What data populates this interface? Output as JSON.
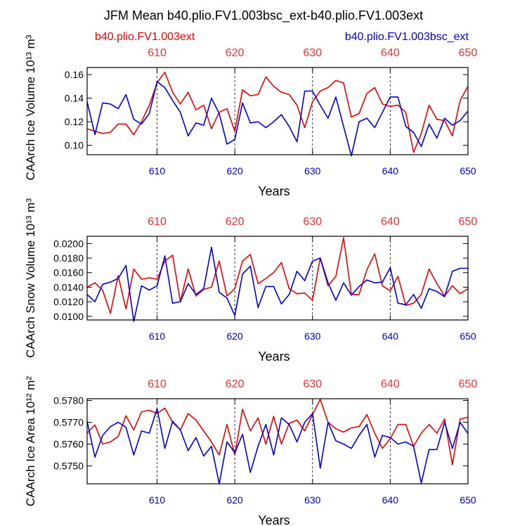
{
  "page": {
    "title": "JFM Mean b40.plio.FV1.003bsc_ext-b40.plio.FV1.003ext",
    "legend_red": "b40.plio.FV1.003ext",
    "legend_blue": "b40.plio.FV1.003bsc_ext"
  },
  "colors": {
    "red": "#ee0000",
    "blue": "#0000dd",
    "axis": "#000000",
    "tick_red": "#ee3333",
    "tick_blue": "#0000dd"
  },
  "chart_data": [
    {
      "type": "line",
      "ylabel": "CAArch Ice Volume 10¹³ m³",
      "xlabel": "Years",
      "xlim": [
        601,
        650
      ],
      "ylim": [
        0.092,
        0.166
      ],
      "yticks": [
        "0.10",
        "0.12",
        "0.14",
        "0.16"
      ],
      "ytick_values": [
        0.1,
        0.12,
        0.14,
        0.16
      ],
      "xticks": [
        610,
        620,
        630,
        640,
        650
      ],
      "x": [
        601,
        602,
        603,
        604,
        605,
        606,
        607,
        608,
        609,
        610,
        611,
        612,
        613,
        614,
        615,
        616,
        617,
        618,
        619,
        620,
        621,
        622,
        623,
        624,
        625,
        626,
        627,
        628,
        629,
        630,
        631,
        632,
        633,
        634,
        635,
        636,
        637,
        638,
        639,
        640,
        641,
        642,
        643,
        644,
        645,
        646,
        647,
        648,
        649,
        650
      ],
      "series": [
        {
          "name": "b40.plio.FV1.003ext",
          "color": "red",
          "values": [
            0.114,
            0.112,
            0.11,
            0.111,
            0.118,
            0.118,
            0.109,
            0.12,
            0.134,
            0.153,
            0.162,
            0.145,
            0.135,
            0.145,
            0.13,
            0.134,
            0.114,
            0.128,
            0.131,
            0.112,
            0.147,
            0.142,
            0.143,
            0.158,
            0.15,
            0.145,
            0.143,
            0.134,
            0.115,
            0.137,
            0.146,
            0.149,
            0.155,
            0.153,
            0.124,
            0.127,
            0.144,
            0.149,
            0.135,
            0.133,
            0.134,
            0.128,
            0.094,
            0.11,
            0.134,
            0.122,
            0.121,
            0.108,
            0.138,
            0.15
          ]
        },
        {
          "name": "b40.plio.FV1.003bsc_ext",
          "color": "blue",
          "values": [
            0.137,
            0.109,
            0.136,
            0.135,
            0.131,
            0.143,
            0.122,
            0.118,
            0.127,
            0.154,
            0.149,
            0.138,
            0.128,
            0.108,
            0.119,
            0.117,
            0.14,
            0.127,
            0.101,
            0.105,
            0.136,
            0.119,
            0.12,
            0.115,
            0.12,
            0.126,
            0.116,
            0.103,
            0.146,
            0.146,
            0.134,
            0.123,
            0.141,
            0.116,
            0.091,
            0.12,
            0.123,
            0.115,
            0.128,
            0.141,
            0.141,
            0.116,
            0.111,
            0.099,
            0.118,
            0.106,
            0.123,
            0.117,
            0.121,
            0.129
          ]
        }
      ]
    },
    {
      "type": "line",
      "ylabel": "CAArch Snow Volume 10¹³ m³",
      "xlabel": "Years",
      "xlim": [
        601,
        650
      ],
      "ylim": [
        0.0095,
        0.021
      ],
      "yticks": [
        "0.0100",
        "0.0120",
        "0.0140",
        "0.0160",
        "0.0180",
        "0.0200"
      ],
      "ytick_values": [
        0.01,
        0.012,
        0.014,
        0.016,
        0.018,
        0.02
      ],
      "xticks": [
        610,
        620,
        630,
        640,
        650
      ],
      "x": [
        601,
        602,
        603,
        604,
        605,
        606,
        607,
        608,
        609,
        610,
        611,
        612,
        613,
        614,
        615,
        616,
        617,
        618,
        619,
        620,
        621,
        622,
        623,
        624,
        625,
        626,
        627,
        628,
        629,
        630,
        631,
        632,
        633,
        634,
        635,
        636,
        637,
        638,
        639,
        640,
        641,
        642,
        643,
        644,
        645,
        646,
        647,
        648,
        649,
        650
      ],
      "series": [
        {
          "name": "b40.plio.FV1.003ext",
          "color": "red",
          "values": [
            0.014,
            0.0146,
            0.0136,
            0.0104,
            0.0156,
            0.011,
            0.0165,
            0.0151,
            0.0153,
            0.0151,
            0.0176,
            0.0184,
            0.012,
            0.0165,
            0.0128,
            0.0137,
            0.014,
            0.0176,
            0.0128,
            0.0138,
            0.0176,
            0.0185,
            0.0145,
            0.0152,
            0.016,
            0.0174,
            0.0138,
            0.0131,
            0.0132,
            0.0122,
            0.018,
            0.0142,
            0.0155,
            0.0208,
            0.013,
            0.013,
            0.0164,
            0.0186,
            0.0142,
            0.0135,
            0.0155,
            0.0115,
            0.0118,
            0.013,
            0.0165,
            0.0145,
            0.0128,
            0.0142,
            0.0131,
            0.0138
          ]
        },
        {
          "name": "b40.plio.FV1.003bsc_ext",
          "color": "blue",
          "values": [
            0.013,
            0.012,
            0.0144,
            0.0147,
            0.0152,
            0.017,
            0.0093,
            0.0142,
            0.0136,
            0.0142,
            0.0183,
            0.0118,
            0.012,
            0.0145,
            0.013,
            0.0138,
            0.0195,
            0.0133,
            0.0125,
            0.0101,
            0.0158,
            0.0169,
            0.0112,
            0.0141,
            0.0141,
            0.0117,
            0.013,
            0.0162,
            0.0149,
            0.0176,
            0.018,
            0.0146,
            0.0122,
            0.0146,
            0.0129,
            0.0141,
            0.015,
            0.0146,
            0.0147,
            0.0167,
            0.0118,
            0.0116,
            0.013,
            0.0111,
            0.0138,
            0.0134,
            0.0127,
            0.0162,
            0.0166,
            0.0166
          ]
        }
      ]
    },
    {
      "type": "line",
      "ylabel": "CAArch Ice Area 10¹² m²",
      "xlabel": "Years",
      "xlim": [
        601,
        650
      ],
      "ylim": [
        0.57418,
        0.57808
      ],
      "yticks": [
        "0.5750",
        "0.5760",
        "0.5770",
        "0.5780"
      ],
      "ytick_values": [
        0.575,
        0.576,
        0.577,
        0.578
      ],
      "xticks": [
        610,
        620,
        630,
        640,
        650
      ],
      "x": [
        601,
        602,
        603,
        604,
        605,
        606,
        607,
        608,
        609,
        610,
        611,
        612,
        613,
        614,
        615,
        616,
        617,
        618,
        619,
        620,
        621,
        622,
        623,
        624,
        625,
        626,
        627,
        628,
        629,
        630,
        631,
        632,
        633,
        634,
        635,
        636,
        637,
        638,
        639,
        640,
        641,
        642,
        643,
        644,
        645,
        646,
        647,
        648,
        649,
        650
      ],
      "series": [
        {
          "name": "b40.plio.FV1.003ext",
          "color": "red",
          "values": [
            0.5765,
            0.57688,
            0.576,
            0.5761,
            0.57635,
            0.5773,
            0.57665,
            0.57747,
            0.57755,
            0.5774,
            0.57765,
            0.577,
            0.57665,
            0.5774,
            0.5771,
            0.5766,
            0.5761,
            0.5755,
            0.5769,
            0.5755,
            0.5776,
            0.5766,
            0.5772,
            0.576,
            0.57727,
            0.576,
            0.57695,
            0.5771,
            0.5766,
            0.57735,
            0.57805,
            0.577,
            0.5767,
            0.57655,
            0.57675,
            0.5768,
            0.57735,
            0.5765,
            0.5758,
            0.57625,
            0.5769,
            0.5769,
            0.5759,
            0.5765,
            0.5769,
            0.5765,
            0.57715,
            0.57505,
            0.57715,
            0.57723
          ]
        },
        {
          "name": "b40.plio.FV1.003bsc_ext",
          "color": "blue",
          "values": [
            0.57705,
            0.5754,
            0.5764,
            0.5768,
            0.577,
            0.57677,
            0.5755,
            0.5766,
            0.5765,
            0.57763,
            0.5758,
            0.57705,
            0.57665,
            0.5757,
            0.5763,
            0.57545,
            0.5759,
            0.57418,
            0.5761,
            0.5756,
            0.57645,
            0.5747,
            0.5759,
            0.5769,
            0.5755,
            0.5772,
            0.5769,
            0.5761,
            0.577,
            0.5774,
            0.5749,
            0.577,
            0.57615,
            0.576,
            0.5758,
            0.5764,
            0.5769,
            0.5754,
            0.5764,
            0.5763,
            0.576,
            0.5761,
            0.5759,
            0.57422,
            0.57575,
            0.57575,
            0.577,
            0.5758,
            0.577,
            0.57648
          ]
        }
      ]
    }
  ]
}
